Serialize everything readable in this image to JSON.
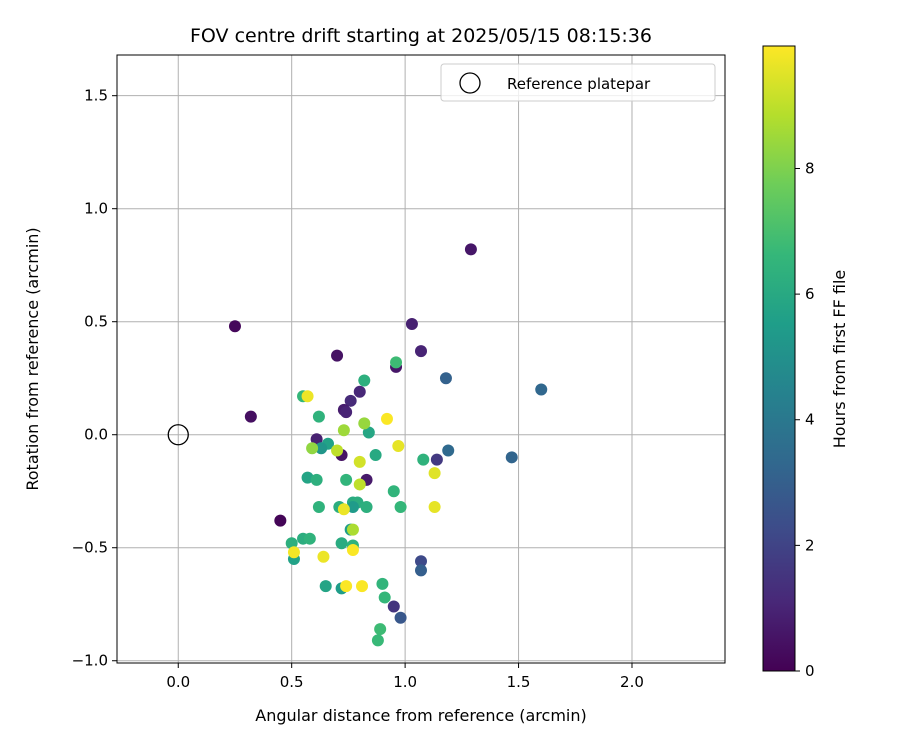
{
  "chart_data": {
    "type": "scatter",
    "title": "FOV centre drift starting at 2025/05/15 08:15:36",
    "xlabel": "Angular distance from reference (arcmin)",
    "ylabel": "Rotation from reference (arcmin)",
    "xlim": [
      -0.27,
      2.41
    ],
    "ylim": [
      -1.01,
      1.68
    ],
    "xticks": [
      0.0,
      0.5,
      1.0,
      1.5,
      2.0
    ],
    "xtick_labels": [
      "0.0",
      "0.5",
      "1.0",
      "1.5",
      "2.0"
    ],
    "yticks": [
      -1.0,
      -0.5,
      0.0,
      0.5,
      1.0,
      1.5
    ],
    "ytick_labels": [
      "−1.0",
      "−0.5",
      "0.0",
      "0.5",
      "1.0",
      "1.5"
    ],
    "grid": true,
    "legend": {
      "position": "upper-right",
      "entries": [
        {
          "label": "Reference platepar",
          "marker": "open-circle"
        }
      ]
    },
    "reference_point": {
      "x": 0.0,
      "y": 0.0
    },
    "colorbar": {
      "label": "Hours from first FF file",
      "colormap": "viridis",
      "range": [
        0,
        9.95
      ],
      "ticks": [
        0,
        2,
        4,
        6,
        8
      ],
      "tick_labels": [
        "0",
        "2",
        "4",
        "6",
        "8"
      ]
    },
    "series": [
      {
        "points": [
          {
            "x": 0.25,
            "y": 0.48,
            "c": 0.2
          },
          {
            "x": 0.32,
            "y": 0.08,
            "c": 0.4
          },
          {
            "x": 0.45,
            "y": -0.38,
            "c": 0.1
          },
          {
            "x": 0.7,
            "y": 0.35,
            "c": 0.5
          },
          {
            "x": 1.29,
            "y": 0.82,
            "c": 0.6
          },
          {
            "x": 1.03,
            "y": 0.49,
            "c": 0.9
          },
          {
            "x": 1.07,
            "y": 0.37,
            "c": 1.0
          },
          {
            "x": 0.96,
            "y": 0.3,
            "c": 0.6
          },
          {
            "x": 0.8,
            "y": 0.19,
            "c": 1.1
          },
          {
            "x": 0.76,
            "y": 0.15,
            "c": 1.2
          },
          {
            "x": 0.73,
            "y": 0.11,
            "c": 0.8
          },
          {
            "x": 0.74,
            "y": 0.1,
            "c": 1.0
          },
          {
            "x": 0.61,
            "y": -0.02,
            "c": 0.9
          },
          {
            "x": 0.72,
            "y": -0.09,
            "c": 0.5
          },
          {
            "x": 0.83,
            "y": -0.2,
            "c": 0.7
          },
          {
            "x": 1.14,
            "y": -0.11,
            "c": 1.7
          },
          {
            "x": 1.07,
            "y": -0.56,
            "c": 2.2
          },
          {
            "x": 1.07,
            "y": -0.6,
            "c": 3.0
          },
          {
            "x": 0.95,
            "y": -0.76,
            "c": 1.5
          },
          {
            "x": 0.98,
            "y": -0.81,
            "c": 2.7
          },
          {
            "x": 1.18,
            "y": 0.25,
            "c": 3.1
          },
          {
            "x": 1.19,
            "y": -0.07,
            "c": 3.4
          },
          {
            "x": 1.6,
            "y": 0.2,
            "c": 3.3
          },
          {
            "x": 1.47,
            "y": -0.1,
            "c": 3.2
          },
          {
            "x": 0.82,
            "y": 0.24,
            "c": 6.3
          },
          {
            "x": 0.96,
            "y": 0.32,
            "c": 6.8
          },
          {
            "x": 0.55,
            "y": 0.17,
            "c": 6.6
          },
          {
            "x": 0.62,
            "y": 0.08,
            "c": 6.4
          },
          {
            "x": 0.84,
            "y": 0.01,
            "c": 5.9
          },
          {
            "x": 0.66,
            "y": -0.04,
            "c": 5.7
          },
          {
            "x": 0.63,
            "y": -0.06,
            "c": 5.2
          },
          {
            "x": 0.87,
            "y": -0.09,
            "c": 6.0
          },
          {
            "x": 1.08,
            "y": -0.11,
            "c": 6.4
          },
          {
            "x": 0.57,
            "y": -0.19,
            "c": 5.8
          },
          {
            "x": 0.61,
            "y": -0.2,
            "c": 6.3
          },
          {
            "x": 0.74,
            "y": -0.2,
            "c": 6.5
          },
          {
            "x": 0.95,
            "y": -0.25,
            "c": 6.5
          },
          {
            "x": 0.77,
            "y": -0.3,
            "c": 6.1
          },
          {
            "x": 0.79,
            "y": -0.3,
            "c": 6.2
          },
          {
            "x": 0.62,
            "y": -0.32,
            "c": 6.4
          },
          {
            "x": 0.71,
            "y": -0.32,
            "c": 6.2
          },
          {
            "x": 0.77,
            "y": -0.32,
            "c": 5.4
          },
          {
            "x": 0.83,
            "y": -0.32,
            "c": 6.3
          },
          {
            "x": 0.98,
            "y": -0.32,
            "c": 6.6
          },
          {
            "x": 0.76,
            "y": -0.42,
            "c": 5.5
          },
          {
            "x": 0.55,
            "y": -0.46,
            "c": 6.2
          },
          {
            "x": 0.58,
            "y": -0.46,
            "c": 6.4
          },
          {
            "x": 0.5,
            "y": -0.48,
            "c": 6.3
          },
          {
            "x": 0.72,
            "y": -0.48,
            "c": 6.1
          },
          {
            "x": 0.77,
            "y": -0.49,
            "c": 6.4
          },
          {
            "x": 0.51,
            "y": -0.55,
            "c": 5.7
          },
          {
            "x": 0.65,
            "y": -0.67,
            "c": 5.8
          },
          {
            "x": 0.72,
            "y": -0.68,
            "c": 5.5
          },
          {
            "x": 0.9,
            "y": -0.66,
            "c": 6.5
          },
          {
            "x": 0.91,
            "y": -0.72,
            "c": 6.6
          },
          {
            "x": 0.89,
            "y": -0.86,
            "c": 6.8
          },
          {
            "x": 0.88,
            "y": -0.91,
            "c": 6.7
          },
          {
            "x": 0.57,
            "y": 0.17,
            "c": 9.7
          },
          {
            "x": 0.59,
            "y": -0.06,
            "c": 8.3
          },
          {
            "x": 0.7,
            "y": -0.07,
            "c": 9.0
          },
          {
            "x": 0.73,
            "y": 0.02,
            "c": 8.5
          },
          {
            "x": 0.82,
            "y": 0.05,
            "c": 8.4
          },
          {
            "x": 0.92,
            "y": 0.07,
            "c": 9.9
          },
          {
            "x": 0.97,
            "y": -0.05,
            "c": 9.6
          },
          {
            "x": 0.8,
            "y": -0.12,
            "c": 9.3
          },
          {
            "x": 0.8,
            "y": -0.22,
            "c": 9.0
          },
          {
            "x": 1.13,
            "y": -0.17,
            "c": 9.5
          },
          {
            "x": 1.13,
            "y": -0.32,
            "c": 9.6
          },
          {
            "x": 0.73,
            "y": -0.33,
            "c": 9.7
          },
          {
            "x": 0.77,
            "y": -0.42,
            "c": 8.7
          },
          {
            "x": 0.51,
            "y": -0.52,
            "c": 9.8
          },
          {
            "x": 0.64,
            "y": -0.54,
            "c": 9.7
          },
          {
            "x": 0.77,
            "y": -0.51,
            "c": 9.9
          },
          {
            "x": 0.74,
            "y": -0.67,
            "c": 9.9
          },
          {
            "x": 0.81,
            "y": -0.67,
            "c": 9.9
          }
        ]
      }
    ]
  }
}
